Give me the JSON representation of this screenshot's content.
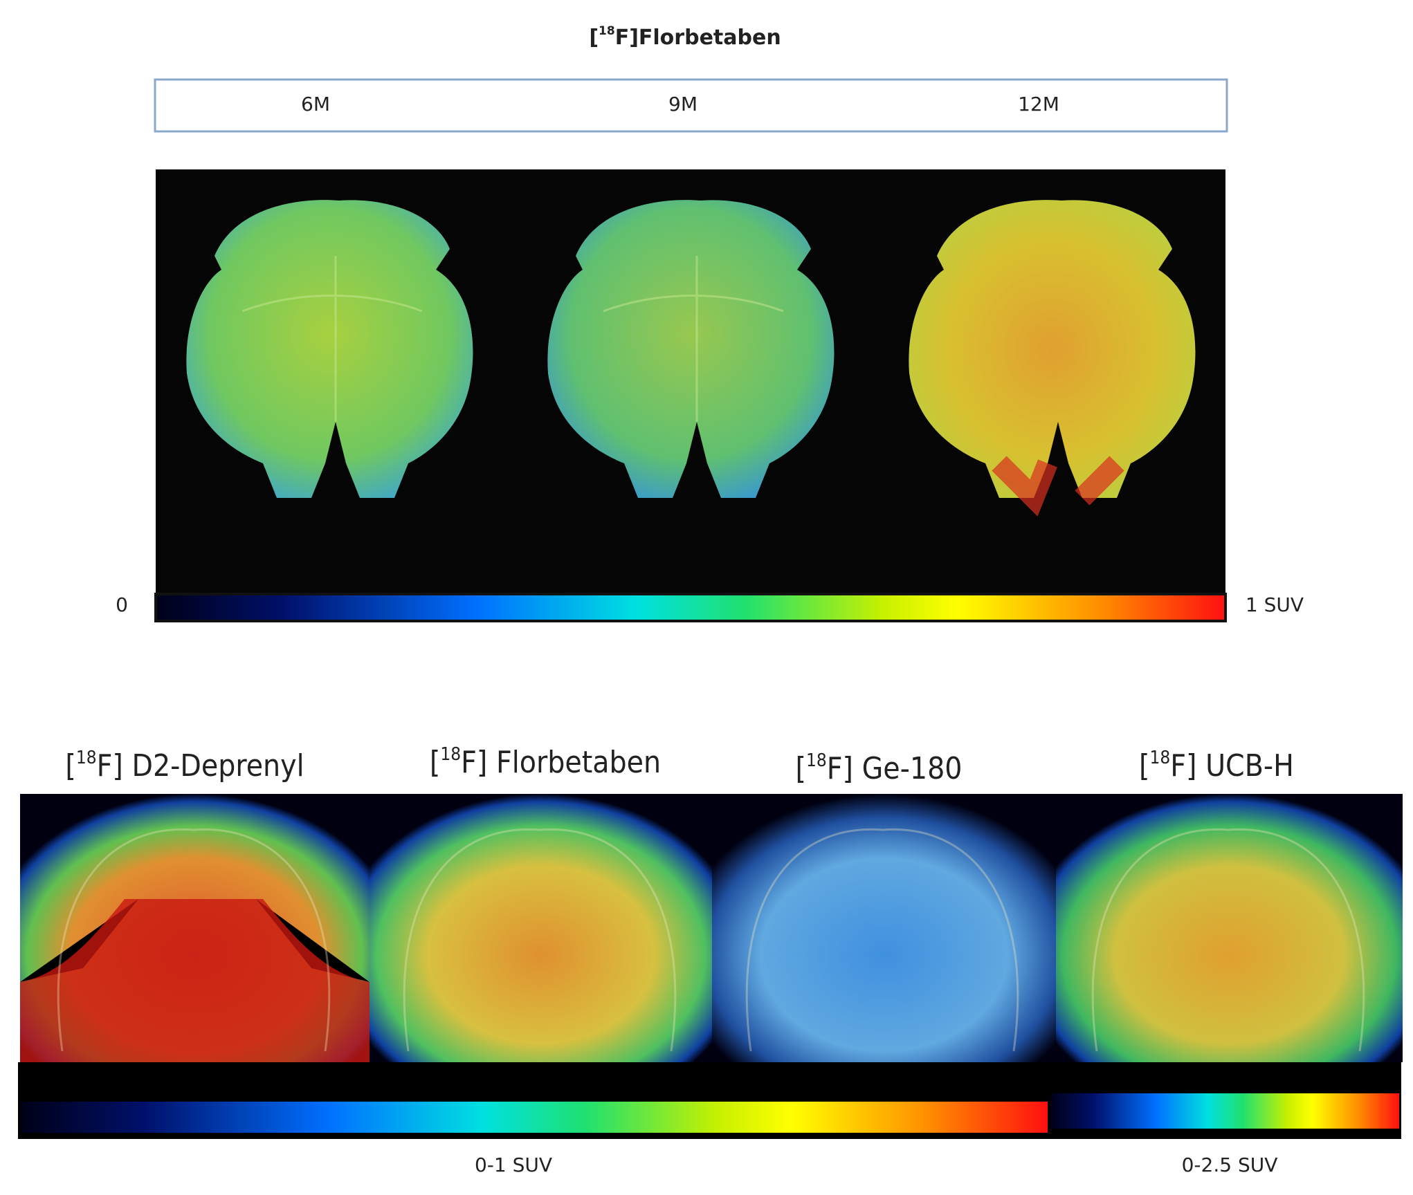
{
  "header": {
    "title": {
      "open": "[",
      "sup": "18",
      "rest": "F]Florbetaben"
    },
    "timepoints": [
      "6M",
      "9M",
      "12M"
    ],
    "scale": {
      "min_label": "0",
      "max_label": "1 SUV"
    }
  },
  "tracers": [
    {
      "open": "[",
      "sup": "18",
      "close": "F]",
      "name": "D2-Deprenyl"
    },
    {
      "open": "[",
      "sup": "18",
      "close": "F]",
      "name": "Florbetaben"
    },
    {
      "open": "[",
      "sup": "18",
      "close": "F]",
      "name": "Ge-180"
    },
    {
      "open": "[",
      "sup": "18",
      "close": "F]",
      "name": "UCB-H"
    }
  ],
  "bottom_scales": [
    "0-1 SUV",
    "0-2.5 SUV"
  ]
}
